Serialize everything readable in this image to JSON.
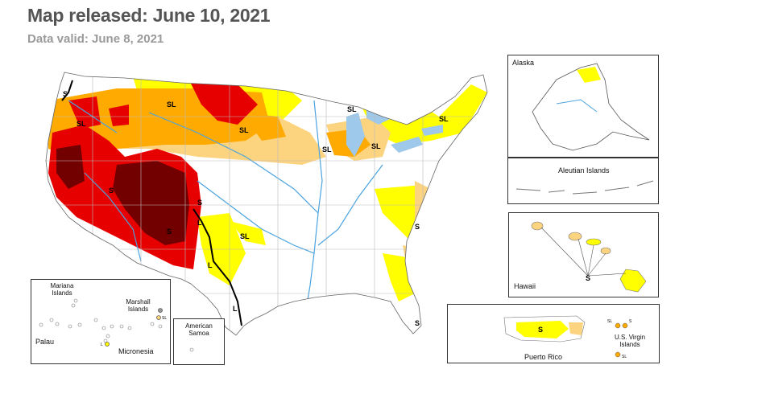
{
  "header": {
    "title": "Map released: June 10, 2021",
    "subtitle": "Data valid: June 8, 2021"
  },
  "colors": {
    "none": "#ffffff",
    "d0": "#ffff00",
    "d1": "#fcd37f",
    "d2": "#ffaa00",
    "d3": "#e60000",
    "d4": "#730000",
    "water": "#9ec9ea",
    "river": "#4aa3df",
    "border": "#111111"
  },
  "conus": {
    "labels": [
      "S",
      "SL",
      "SL",
      "SL",
      "SL",
      "SL",
      "SL",
      "SL",
      "S",
      "S",
      "L",
      "L",
      "L",
      "S",
      "SL",
      "S",
      "S"
    ]
  },
  "insets": {
    "alaska": {
      "label": "Alaska"
    },
    "aleutian": {
      "label": "Aleutian Islands"
    },
    "hawaii": {
      "label": "Hawaii",
      "impact": "S"
    },
    "puerto_rico": {
      "label": "Puerto Rico",
      "impact": "S"
    },
    "usvi": {
      "label": "U.S. Virgin Islands",
      "impact_a": "SL",
      "impact_b": "S",
      "impact_c": "SL"
    },
    "pacific": {
      "mariana": "Mariana Islands",
      "marshall": "Marshall Islands",
      "palau": "Palau",
      "micronesia": "Micronesia",
      "marshall_impact": "SL",
      "micronesia_impact": "L"
    },
    "samoa": {
      "label": "American Samoa"
    }
  }
}
